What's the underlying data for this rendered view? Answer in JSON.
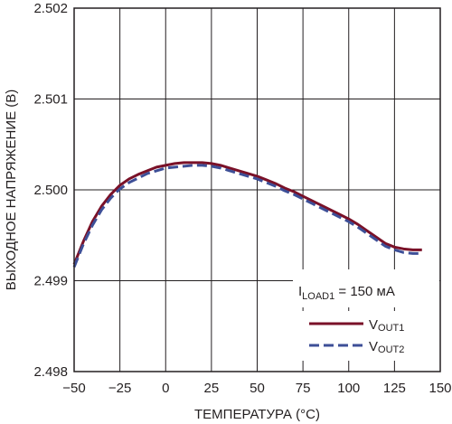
{
  "chart_data": {
    "type": "line",
    "xlabel": "ТЕМПЕРАТУРА (°C)",
    "ylabel": "ВЫХОДНОЕ НАПРЯЖЕНИЕ (В)",
    "xlim": [
      -50,
      150
    ],
    "ylim": [
      2.498,
      2.502
    ],
    "x_ticks": [
      "−50",
      "−25",
      "0",
      "25",
      "50",
      "75",
      "100",
      "125",
      "150"
    ],
    "y_ticks": [
      "2.498",
      "2.499",
      "2.500",
      "2.501",
      "2.502"
    ],
    "grid": true,
    "annotation": {
      "prefix": "I",
      "subscript": "LOAD1",
      "suffix": " = 150 мА"
    },
    "legend_position": "bottom-right",
    "series": [
      {
        "name_main": "V",
        "name_sub": "OUT1",
        "color": "#7a1128",
        "style": "solid",
        "x": [
          -50,
          -45,
          -40,
          -35,
          -30,
          -25,
          -20,
          -15,
          -10,
          -5,
          0,
          5,
          10,
          15,
          20,
          25,
          30,
          35,
          40,
          45,
          50,
          55,
          60,
          65,
          70,
          75,
          80,
          85,
          90,
          95,
          100,
          105,
          110,
          115,
          120,
          125,
          130,
          135,
          140
        ],
        "values": [
          2.49918,
          2.49943,
          2.49965,
          2.49982,
          2.49995,
          2.50005,
          2.50012,
          2.50017,
          2.50021,
          2.50025,
          2.50027,
          2.50029,
          2.5003,
          2.5003,
          2.5003,
          2.50029,
          2.50027,
          2.50024,
          2.50021,
          2.50018,
          2.50015,
          2.50011,
          2.50007,
          2.50002,
          2.49998,
          2.49993,
          2.49988,
          2.49983,
          2.49978,
          2.49973,
          2.49968,
          2.49962,
          2.49955,
          2.49948,
          2.49941,
          2.49937,
          2.49935,
          2.49934,
          2.49934
        ]
      },
      {
        "name_main": "V",
        "name_sub": "OUT2",
        "color": "#3d4f97",
        "style": "dashed",
        "x": [
          -50,
          -45,
          -40,
          -35,
          -30,
          -25,
          -20,
          -15,
          -10,
          -5,
          0,
          5,
          10,
          15,
          20,
          25,
          30,
          35,
          40,
          45,
          50,
          55,
          60,
          65,
          70,
          75,
          80,
          85,
          90,
          95,
          100,
          105,
          110,
          115,
          120,
          125,
          130,
          135,
          140
        ],
        "values": [
          2.49915,
          2.4994,
          2.49961,
          2.49978,
          2.49991,
          2.50001,
          2.50008,
          2.50013,
          2.50018,
          2.50021,
          2.50024,
          2.50025,
          2.50026,
          2.50027,
          2.50027,
          2.50026,
          2.50024,
          2.50021,
          2.50018,
          2.50015,
          2.50012,
          2.50008,
          2.50004,
          2.49999,
          2.49995,
          2.4999,
          2.49985,
          2.4998,
          2.49975,
          2.4997,
          2.49965,
          2.49959,
          2.49952,
          2.49945,
          2.49938,
          2.49934,
          2.49931,
          2.4993,
          2.4993
        ]
      }
    ]
  }
}
